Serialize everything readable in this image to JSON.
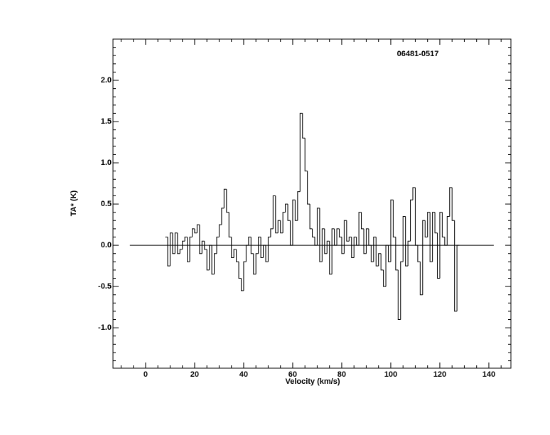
{
  "chart_data": {
    "type": "step",
    "title": "06481-0517",
    "xlabel": "Velocity (km/s)",
    "ylabel": "TA* (K)",
    "xlim": [
      -13.3,
      149
    ],
    "ylim": [
      -1.49,
      2.5
    ],
    "xticks": [
      0,
      20,
      40,
      60,
      80,
      100,
      120,
      140
    ],
    "yticks": [
      {
        "value": 2,
        "label": "2.0"
      },
      1.5,
      {
        "value": 1,
        "label": "1.0"
      },
      0.5,
      {
        "value": 0,
        "label": "0.0"
      },
      -0.5,
      {
        "value": -1,
        "label": "-1.0"
      }
    ],
    "xminor": [
      -10,
      -5,
      5,
      10,
      15,
      25,
      30,
      35,
      45,
      50,
      55,
      65,
      70,
      75,
      85,
      90,
      95,
      105,
      110,
      115,
      125,
      130,
      135,
      145
    ],
    "yminor": [
      -1.4,
      -1.3,
      -1.2,
      -1.1,
      -0.9,
      -0.8,
      -0.7,
      -0.6,
      -0.4,
      -0.3,
      -0.2,
      -0.1,
      0.1,
      0.2,
      0.3,
      0.4,
      0.6,
      0.7,
      0.8,
      0.9,
      1.1,
      1.2,
      1.3,
      1.4,
      1.6,
      1.7,
      1.8,
      1.9,
      2.1,
      2.2,
      2.3,
      2.4
    ],
    "baseline": {
      "x": [
        -6.4,
        142
      ],
      "y": 0
    },
    "color": "#000000",
    "x": [
      8.5,
      9.5,
      10.5,
      11.5,
      12.5,
      13.5,
      14.5,
      15.5,
      16.5,
      17.5,
      18.5,
      19.5,
      20.5,
      21.5,
      22.5,
      23.5,
      24.5,
      25.5,
      26.5,
      27.5,
      28.5,
      29.5,
      30.5,
      31.5,
      32.5,
      33.5,
      34.5,
      35.5,
      36.5,
      37.5,
      38.5,
      39.5,
      40.5,
      41.5,
      42.5,
      43.5,
      44.5,
      45.5,
      46.5,
      47.5,
      48.5,
      49.5,
      50.5,
      51.5,
      52.5,
      53.5,
      54.5,
      55.5,
      56.5,
      57.5,
      58.5,
      59.5,
      60.5,
      61.5,
      62.5,
      63.5,
      64.5,
      65.5,
      66.5,
      67.5,
      68.5,
      69.5,
      70.5,
      71.5,
      72.5,
      73.5,
      74.5,
      75.5,
      76.5,
      77.5,
      78.5,
      79.5,
      80.5,
      81.5,
      82.5,
      83.5,
      84.5,
      85.5,
      86.5,
      87.5,
      88.5,
      89.5,
      90.5,
      91.5,
      92.5,
      93.5,
      94.5,
      95.5,
      96.5,
      97.5,
      98.5,
      99.5,
      100.5,
      101.5,
      102.5,
      103.5,
      104.5,
      105.5,
      106.5,
      107.5,
      108.5,
      109.5,
      110.5,
      111.5,
      112.5,
      113.5,
      114.5,
      115.5,
      116.5,
      117.5,
      118.5,
      119.5,
      120.5,
      121.5,
      122.5,
      123.5,
      124.5,
      125.5,
      126.5,
      127.5
    ],
    "values": [
      0.1,
      -0.25,
      0.15,
      -0.1,
      0.15,
      -0.1,
      -0.05,
      0.05,
      0.1,
      -0.2,
      0.1,
      0.2,
      0.15,
      0.25,
      -0.1,
      0.05,
      -0.05,
      -0.3,
      0.0,
      -0.35,
      -0.1,
      0.1,
      0.25,
      0.45,
      0.68,
      0.4,
      0.1,
      -0.15,
      -0.05,
      -0.2,
      -0.4,
      -0.55,
      -0.2,
      0.0,
      0.1,
      -0.1,
      -0.35,
      -0.1,
      0.1,
      -0.15,
      0.0,
      -0.2,
      0.1,
      0.2,
      0.6,
      0.15,
      0.3,
      0.15,
      0.4,
      0.5,
      0.3,
      0.0,
      0.55,
      0.3,
      0.65,
      1.6,
      1.3,
      0.9,
      0.5,
      0.2,
      0.1,
      0.0,
      0.45,
      -0.2,
      0.2,
      -0.1,
      0.05,
      -0.35,
      0.2,
      0.0,
      0.2,
      0.1,
      -0.1,
      0.3,
      0.05,
      0.1,
      -0.15,
      0.1,
      0.0,
      0.4,
      0.2,
      -0.1,
      0.2,
      0.0,
      -0.2,
      0.1,
      -0.25,
      -0.1,
      -0.3,
      -0.5,
      0.0,
      -0.2,
      0.55,
      0.1,
      -0.3,
      -0.9,
      -0.2,
      0.35,
      -0.25,
      0.05,
      0.55,
      0.7,
      0.0,
      -0.2,
      -0.6,
      0.3,
      0.1,
      0.4,
      -0.2,
      0.4,
      0.15,
      -0.4,
      0.4,
      0.1,
      0.0,
      0.35,
      0.7,
      0.3,
      -0.8,
      0.0
    ]
  }
}
